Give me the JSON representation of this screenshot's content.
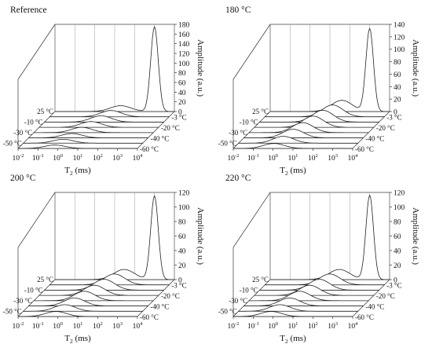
{
  "chart_data": [
    {
      "type": "line",
      "title": "Reference",
      "xlabel": "T2 (ms)",
      "ylabel": "Amplitude (a.u.)",
      "x_scale": "log",
      "x_ticks": [
        "10-2",
        "10-1",
        "100",
        "101",
        "102",
        "103",
        "104"
      ],
      "z_ticks": [
        "0",
        "20",
        "40",
        "60",
        "80",
        "100",
        "120",
        "140",
        "160",
        "180"
      ],
      "ylim": [
        0,
        180
      ],
      "depth_ticks_left": [
        "25 °C",
        "-10 °C",
        "-30 °C",
        "-50 °C"
      ],
      "depth_ticks_right": [
        "-3 °C",
        "-20 °C",
        "-40 °C",
        "-60 °C"
      ],
      "series": [
        {
          "name": "25 °C",
          "peaks": [
            {
              "t2": 20,
              "amplitude": 12
            },
            {
              "t2": 1000,
              "amplitude": 175
            }
          ]
        },
        {
          "name": "-3 °C",
          "peaks": [
            {
              "t2": 12,
              "amplitude": 13
            }
          ]
        },
        {
          "name": "-10 °C",
          "peaks": [
            {
              "t2": 7,
              "amplitude": 13
            }
          ]
        },
        {
          "name": "-20 °C",
          "peaks": [
            {
              "t2": 4,
              "amplitude": 12
            }
          ]
        },
        {
          "name": "-30 °C",
          "peaks": [
            {
              "t2": 2.5,
              "amplitude": 11
            }
          ]
        },
        {
          "name": "-40 °C",
          "peaks": [
            {
              "t2": 1.5,
              "amplitude": 9
            }
          ]
        },
        {
          "name": "-50 °C",
          "peaks": [
            {
              "t2": 1,
              "amplitude": 8
            }
          ]
        },
        {
          "name": "-60 °C",
          "peaks": [
            {
              "t2": 0.7,
              "amplitude": 7
            }
          ]
        }
      ]
    },
    {
      "type": "line",
      "title": "180 °C",
      "xlabel": "T2 (ms)",
      "ylabel": "Amplitude (a.u.)",
      "x_scale": "log",
      "x_ticks": [
        "10-2",
        "10-1",
        "100",
        "101",
        "102",
        "103",
        "104"
      ],
      "z_ticks": [
        "0",
        "20",
        "40",
        "60",
        "80",
        "100",
        "120",
        "140"
      ],
      "ylim": [
        0,
        140
      ],
      "depth_ticks_left": [
        "25 °C",
        "-10 °C",
        "-30 °C",
        "-50 °C"
      ],
      "depth_ticks_right": [
        "-3 °C",
        "-20 °C",
        "-40 °C",
        "-60 °C"
      ],
      "series": [
        {
          "name": "25 °C",
          "peaks": [
            {
              "t2": 40,
              "amplitude": 18
            },
            {
              "t2": 1000,
              "amplitude": 133
            }
          ]
        },
        {
          "name": "-3 °C",
          "peaks": [
            {
              "t2": 25,
              "amplitude": 19
            }
          ]
        },
        {
          "name": "-10 °C",
          "peaks": [
            {
              "t2": 15,
              "amplitude": 19
            }
          ]
        },
        {
          "name": "-20 °C",
          "peaks": [
            {
              "t2": 9,
              "amplitude": 18
            }
          ]
        },
        {
          "name": "-30 °C",
          "peaks": [
            {
              "t2": 5,
              "amplitude": 16
            }
          ]
        },
        {
          "name": "-40 °C",
          "peaks": [
            {
              "t2": 3,
              "amplitude": 14
            }
          ]
        },
        {
          "name": "-50 °C",
          "peaks": [
            {
              "t2": 1.8,
              "amplitude": 11
            }
          ]
        },
        {
          "name": "-60 °C",
          "peaks": [
            {
              "t2": 1.1,
              "amplitude": 8
            }
          ]
        }
      ]
    },
    {
      "type": "line",
      "title": "200 °C",
      "xlabel": "T2 (ms)",
      "ylabel": "Amplitude (a.u.)",
      "x_scale": "log",
      "x_ticks": [
        "10-2",
        "10-1",
        "100",
        "101",
        "102",
        "103",
        "104"
      ],
      "z_ticks": [
        "0",
        "20",
        "40",
        "60",
        "80",
        "100",
        "120"
      ],
      "ylim": [
        0,
        120
      ],
      "depth_ticks_left": [
        "25 °C",
        "-10 °C",
        "-30 °C",
        "-50 °C"
      ],
      "depth_ticks_right": [
        "-3 °C",
        "-20 °C",
        "-40 °C",
        "-60 °C"
      ],
      "series": [
        {
          "name": "25 °C",
          "peaks": [
            {
              "t2": 30,
              "amplitude": 14
            },
            {
              "t2": 1000,
              "amplitude": 115
            }
          ]
        },
        {
          "name": "-3 °C",
          "peaks": [
            {
              "t2": 18,
              "amplitude": 15
            }
          ]
        },
        {
          "name": "-10 °C",
          "peaks": [
            {
              "t2": 10,
              "amplitude": 15
            }
          ]
        },
        {
          "name": "-20 °C",
          "peaks": [
            {
              "t2": 6,
              "amplitude": 14
            }
          ]
        },
        {
          "name": "-30 °C",
          "peaks": [
            {
              "t2": 3.5,
              "amplitude": 13
            }
          ]
        },
        {
          "name": "-40 °C",
          "peaks": [
            {
              "t2": 2,
              "amplitude": 11
            }
          ]
        },
        {
          "name": "-50 °C",
          "peaks": [
            {
              "t2": 1.2,
              "amplitude": 9
            }
          ]
        },
        {
          "name": "-60 °C",
          "peaks": [
            {
              "t2": 0.8,
              "amplitude": 7
            }
          ]
        }
      ]
    },
    {
      "type": "line",
      "title": "220 °C",
      "xlabel": "T2 (ms)",
      "ylabel": "Amplitude (a.u.)",
      "x_scale": "log",
      "x_ticks": [
        "10-2",
        "10-1",
        "100",
        "101",
        "102",
        "103",
        "104"
      ],
      "z_ticks": [
        "0",
        "20",
        "40",
        "60",
        "80",
        "100",
        "120"
      ],
      "ylim": [
        0,
        120
      ],
      "depth_ticks_left": [
        "25 °C",
        "-10 °C",
        "-30 °C",
        "-50 °C"
      ],
      "depth_ticks_right": [
        "-3 °C",
        "-20 °C",
        "-40 °C",
        "-60 °C"
      ],
      "series": [
        {
          "name": "25 °C",
          "peaks": [
            {
              "t2": 30,
              "amplitude": 14
            },
            {
              "t2": 1000,
              "amplitude": 116
            }
          ]
        },
        {
          "name": "-3 °C",
          "peaks": [
            {
              "t2": 18,
              "amplitude": 15
            }
          ]
        },
        {
          "name": "-10 °C",
          "peaks": [
            {
              "t2": 10,
              "amplitude": 15
            }
          ]
        },
        {
          "name": "-20 °C",
          "peaks": [
            {
              "t2": 6,
              "amplitude": 14
            }
          ]
        },
        {
          "name": "-30 °C",
          "peaks": [
            {
              "t2": 3.5,
              "amplitude": 13
            }
          ]
        },
        {
          "name": "-40 °C",
          "peaks": [
            {
              "t2": 2,
              "amplitude": 11
            }
          ]
        },
        {
          "name": "-50 °C",
          "peaks": [
            {
              "t2": 1.2,
              "amplitude": 9
            }
          ]
        },
        {
          "name": "-60 °C",
          "peaks": [
            {
              "t2": 0.8,
              "amplitude": 7
            }
          ]
        }
      ]
    }
  ]
}
